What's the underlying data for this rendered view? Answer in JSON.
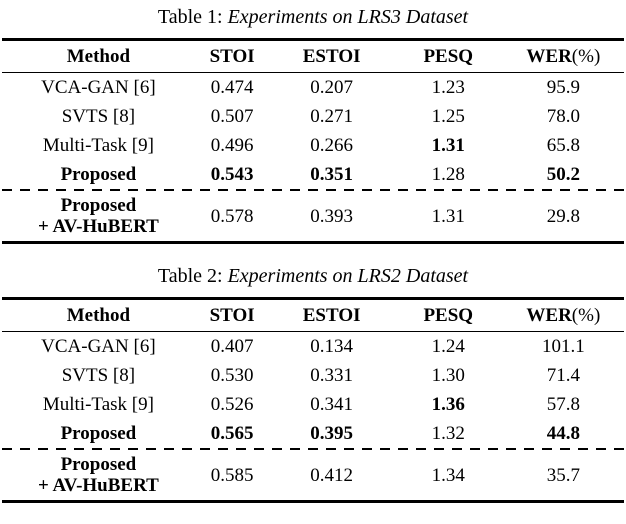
{
  "tables": [
    {
      "caption": {
        "label": "Table 1:",
        "title": "Experiments on LRS3 Dataset"
      },
      "headers": {
        "method": "Method",
        "stoi": "STOI",
        "estoi": "ESTOI",
        "pesq": "PESQ",
        "wer": "WER",
        "wer_unit": "(%)"
      },
      "rows": [
        {
          "method": "VCA-GAN [6]",
          "stoi": "0.474",
          "estoi": "0.207",
          "pesq": "1.23",
          "wer": "95.9"
        },
        {
          "method": "SVTS [8]",
          "stoi": "0.507",
          "estoi": "0.271",
          "pesq": "1.25",
          "wer": "78.0"
        },
        {
          "method": "Multi-Task [9]",
          "stoi": "0.496",
          "estoi": "0.266",
          "pesq": "1.31",
          "wer": "65.8"
        },
        {
          "method": "Proposed",
          "stoi": "0.543",
          "estoi": "0.351",
          "pesq": "1.28",
          "wer": "50.2"
        },
        {
          "method_line1": "Proposed",
          "method_line2": "+ AV-HuBERT",
          "stoi": "0.578",
          "estoi": "0.393",
          "pesq": "1.31",
          "wer": "29.8"
        }
      ]
    },
    {
      "caption": {
        "label": "Table 2:",
        "title": "Experiments on LRS2 Dataset"
      },
      "headers": {
        "method": "Method",
        "stoi": "STOI",
        "estoi": "ESTOI",
        "pesq": "PESQ",
        "wer": "WER",
        "wer_unit": "(%)"
      },
      "rows": [
        {
          "method": "VCA-GAN [6]",
          "stoi": "0.407",
          "estoi": "0.134",
          "pesq": "1.24",
          "wer": "101.1"
        },
        {
          "method": "SVTS [8]",
          "stoi": "0.530",
          "estoi": "0.331",
          "pesq": "1.30",
          "wer": "71.4"
        },
        {
          "method": "Multi-Task [9]",
          "stoi": "0.526",
          "estoi": "0.341",
          "pesq": "1.36",
          "wer": "57.8"
        },
        {
          "method": "Proposed",
          "stoi": "0.565",
          "estoi": "0.395",
          "pesq": "1.32",
          "wer": "44.8"
        },
        {
          "method_line1": "Proposed",
          "method_line2": "+ AV-HuBERT",
          "stoi": "0.585",
          "estoi": "0.412",
          "pesq": "1.34",
          "wer": "35.7"
        }
      ]
    }
  ]
}
